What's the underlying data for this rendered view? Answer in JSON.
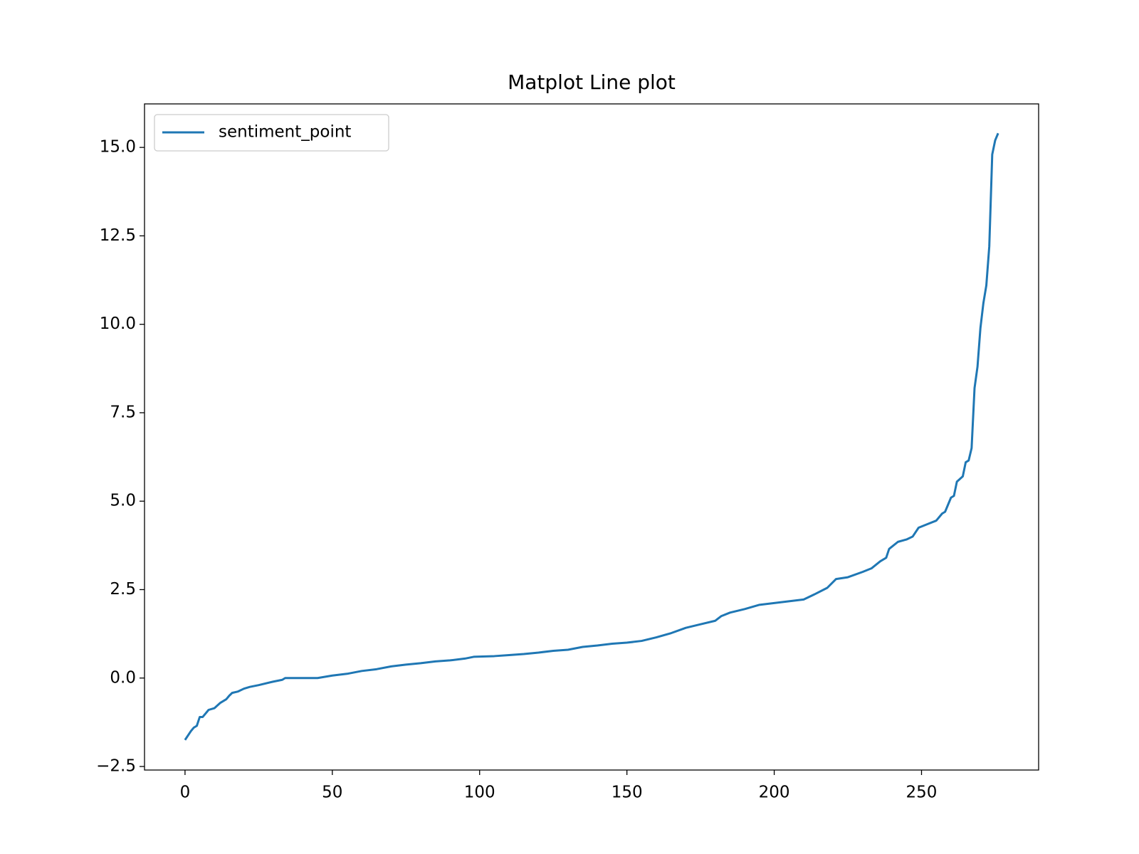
{
  "chart_data": {
    "type": "line",
    "title": "Matplot Line plot",
    "x": [
      0,
      2,
      3,
      4,
      5,
      6,
      8,
      10,
      12,
      14,
      15,
      16,
      18,
      20,
      22,
      25,
      30,
      33,
      34,
      45,
      50,
      55,
      60,
      65,
      70,
      75,
      80,
      85,
      90,
      95,
      98,
      105,
      110,
      115,
      120,
      125,
      130,
      135,
      140,
      145,
      150,
      155,
      160,
      165,
      170,
      175,
      180,
      182,
      185,
      190,
      195,
      200,
      205,
      210,
      214,
      218,
      221,
      225,
      230,
      233,
      236,
      238,
      239,
      242,
      245,
      247,
      249,
      252,
      255,
      257,
      258,
      260,
      261,
      262,
      264,
      265,
      266,
      267,
      268,
      269,
      270,
      271,
      272,
      273,
      274,
      275,
      276
    ],
    "series": [
      {
        "name": "sentiment_point",
        "color": "#1f77b4",
        "values": [
          -1.75,
          -1.5,
          -1.4,
          -1.35,
          -1.1,
          -1.1,
          -0.9,
          -0.85,
          -0.7,
          -0.6,
          -0.5,
          -0.42,
          -0.38,
          -0.3,
          -0.25,
          -0.2,
          -0.1,
          -0.05,
          0,
          0,
          0.07,
          0.12,
          0.2,
          0.25,
          0.33,
          0.38,
          0.42,
          0.47,
          0.5,
          0.55,
          0.6,
          0.62,
          0.65,
          0.68,
          0.72,
          0.77,
          0.8,
          0.88,
          0.92,
          0.97,
          1.0,
          1.05,
          1.15,
          1.27,
          1.42,
          1.52,
          1.62,
          1.75,
          1.85,
          1.95,
          2.07,
          2.12,
          2.17,
          2.22,
          2.38,
          2.55,
          2.8,
          2.85,
          3.0,
          3.1,
          3.3,
          3.4,
          3.65,
          3.85,
          3.92,
          4.0,
          4.25,
          4.35,
          4.45,
          4.65,
          4.7,
          5.1,
          5.15,
          5.55,
          5.7,
          6.1,
          6.15,
          6.5,
          8.2,
          8.8,
          9.9,
          10.6,
          11.1,
          12.2,
          14.8,
          15.2,
          15.4
        ]
      }
    ],
    "xlim": [
      -13.75,
      289.75
    ],
    "xticks": [
      0,
      50,
      100,
      150,
      200,
      250
    ],
    "ylim": [
      -2.6,
      16.23
    ],
    "yticks": [
      {
        "value": -2.5,
        "label": "−2.5"
      },
      {
        "value": 0,
        "label": "0.0"
      },
      {
        "value": 2.5,
        "label": "2.5"
      },
      {
        "value": 5,
        "label": "5.0"
      },
      {
        "value": 7.5,
        "label": "7.5"
      },
      {
        "value": 10,
        "label": "10.0"
      },
      {
        "value": 12.5,
        "label": "12.5"
      },
      {
        "value": 15,
        "label": "15.0"
      }
    ],
    "legend": "upper left"
  }
}
